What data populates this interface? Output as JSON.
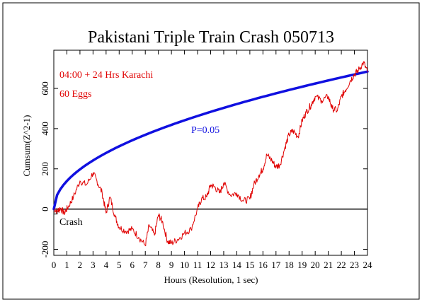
{
  "chart_data": {
    "type": "line",
    "title": "Pakistani Triple Train Crash 050713",
    "xlabel": "Hours (Resolution, 1 sec)",
    "ylabel": "Cumsum(Z^2-1)",
    "xlim": [
      0,
      24
    ],
    "ylim": [
      -230,
      790
    ],
    "x_ticks": [
      0,
      1,
      2,
      3,
      4,
      5,
      6,
      7,
      8,
      9,
      10,
      11,
      12,
      13,
      14,
      15,
      16,
      17,
      18,
      19,
      20,
      21,
      22,
      23,
      24
    ],
    "x_tick_labels": [
      "0",
      "1",
      "2",
      "3",
      "4",
      "5",
      "6",
      "7",
      "8",
      "9",
      "10",
      "11",
      "12",
      "13",
      "14",
      "15",
      "16",
      "17",
      "18",
      "19",
      "20",
      "21",
      "22",
      "23",
      "24"
    ],
    "y_ticks": [
      -200,
      0,
      200,
      400,
      600
    ],
    "y_tick_labels": [
      "-200",
      "0",
      "200",
      "400",
      "600"
    ],
    "annotations": {
      "time_window": "04:00 + 24 Hrs Karachi",
      "eggs": "60 Eggs",
      "probability": "P=0.05",
      "event": "Crash"
    },
    "event_marker_x": 0.15,
    "colors": {
      "data": "#e00000",
      "envelope": "#1010e0",
      "baseline": "#000000",
      "frame": "#000000"
    },
    "series": [
      {
        "color": "#e00000",
        "x": [
          0,
          0.3,
          0.5,
          0.8,
          1.1,
          1.5,
          2.0,
          2.5,
          3.0,
          3.3,
          3.7,
          4.0,
          4.3,
          4.7,
          5.0,
          5.5,
          6.0,
          6.5,
          7.0,
          7.3,
          7.7,
          8.0,
          8.3,
          8.7,
          9.0,
          9.5,
          10.0,
          10.5,
          11.0,
          11.3,
          11.7,
          12.0,
          12.3,
          12.7,
          13.0,
          13.5,
          14.0,
          14.5,
          15.0,
          15.3,
          15.7,
          16.0,
          16.3,
          16.7,
          17.0,
          17.3,
          17.7,
          18.0,
          18.3,
          18.7,
          19.0,
          19.3,
          19.7,
          20.0,
          20.5,
          21.0,
          21.3,
          21.7,
          22.0,
          22.3,
          22.7,
          23.0,
          23.3,
          23.7,
          24.0
        ],
        "y": [
          0,
          -10,
          5,
          -20,
          10,
          60,
          140,
          120,
          180,
          140,
          80,
          -20,
          60,
          -40,
          -90,
          -110,
          -100,
          -140,
          -180,
          -80,
          -130,
          -30,
          -60,
          -160,
          -170,
          -150,
          -120,
          -100,
          0,
          50,
          60,
          120,
          110,
          80,
          130,
          70,
          80,
          40,
          50,
          120,
          170,
          200,
          270,
          240,
          210,
          220,
          310,
          370,
          390,
          360,
          440,
          480,
          520,
          560,
          540,
          560,
          500,
          490,
          560,
          590,
          640,
          670,
          690,
          730,
          680
        ]
      },
      {
        "name": "P=0.05",
        "color": "#1010e0",
        "formula": "y = 1.645 * sqrt(2 * seconds)",
        "samples": 96
      }
    ]
  }
}
